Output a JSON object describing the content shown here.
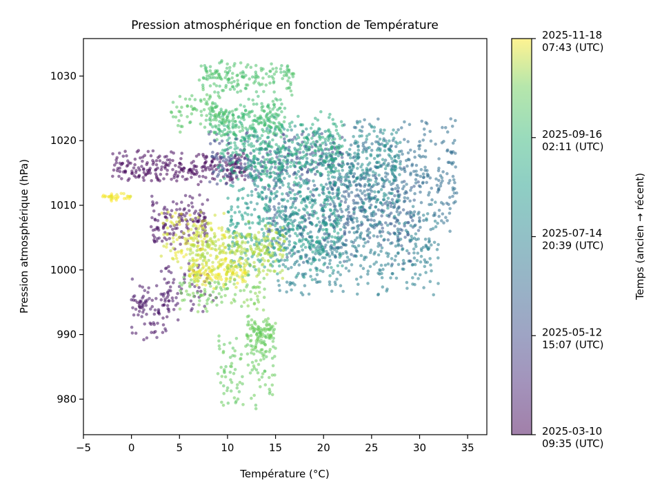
{
  "chart_data": {
    "type": "scatter",
    "title": "Pression atmosphérique en fonction de Température",
    "xlabel": "Température (°C)",
    "ylabel": "Pression atmosphérique (hPa)",
    "xlim": [
      -5,
      37
    ],
    "ylim": [
      974.5,
      1035.8
    ],
    "xticks": [
      -5,
      0,
      5,
      10,
      15,
      20,
      25,
      30,
      35
    ],
    "xtick_labels": [
      "−5",
      "0",
      "5",
      "10",
      "15",
      "20",
      "25",
      "30",
      "35"
    ],
    "yticks": [
      980,
      990,
      1000,
      1010,
      1020,
      1030
    ],
    "ytick_labels": [
      "980",
      "990",
      "1000",
      "1010",
      "1020",
      "1030"
    ],
    "grid": false,
    "colormap": "viridis",
    "point_alpha": 0.55,
    "colorbar": {
      "label": "Temps (ancien → récent)",
      "range": [
        "2025-03-10 09:35 (UTC)",
        "2025-11-18 07:43 (UTC)"
      ],
      "ticks": [
        {
          "line1": "2025-11-18",
          "line2": "07:43 (UTC)",
          "t": 1.0
        },
        {
          "line1": "2025-09-16",
          "line2": "02:11 (UTC)",
          "t": 0.75
        },
        {
          "line1": "2025-07-14",
          "line2": "20:39 (UTC)",
          "t": 0.5
        },
        {
          "line1": "2025-05-12",
          "line2": "15:07 (UTC)",
          "t": 0.25
        },
        {
          "line1": "2025-03-10",
          "line2": "09:35 (UTC)",
          "t": 0.0
        }
      ]
    },
    "series_clusters": [
      {
        "t": 0.02,
        "x": [
          -2,
          12
        ],
        "y": [
          1013,
          1019
        ],
        "n": 260
      },
      {
        "t": 0.04,
        "x": [
          2,
          8
        ],
        "y": [
          1003,
          1012
        ],
        "n": 140
      },
      {
        "t": 0.05,
        "x": [
          0,
          4
        ],
        "y": [
          989,
          999
        ],
        "n": 90
      },
      {
        "t": 0.06,
        "x": [
          3,
          9
        ],
        "y": [
          992,
          1002
        ],
        "n": 60
      },
      {
        "t": 0.25,
        "x": [
          8,
          22
        ],
        "y": [
          1012,
          1022
        ],
        "n": 220
      },
      {
        "t": 0.32,
        "x": [
          14,
          30
        ],
        "y": [
          1000,
          1016
        ],
        "n": 320
      },
      {
        "t": 0.4,
        "x": [
          20,
          34
        ],
        "y": [
          1005,
          1024
        ],
        "n": 380
      },
      {
        "t": 0.48,
        "x": [
          15,
          32
        ],
        "y": [
          995,
          1012
        ],
        "n": 400
      },
      {
        "t": 0.55,
        "x": [
          12,
          28
        ],
        "y": [
          1008,
          1024
        ],
        "n": 420
      },
      {
        "t": 0.62,
        "x": [
          10,
          22
        ],
        "y": [
          998,
          1015
        ],
        "n": 360
      },
      {
        "t": 0.7,
        "x": [
          9,
          22
        ],
        "y": [
          1013,
          1025
        ],
        "n": 320
      },
      {
        "t": 0.78,
        "x": [
          8,
          16
        ],
        "y": [
          1020,
          1027
        ],
        "n": 200
      },
      {
        "t": 0.8,
        "x": [
          7,
          17
        ],
        "y": [
          1027,
          1033
        ],
        "n": 160
      },
      {
        "t": 0.82,
        "x": [
          4,
          10
        ],
        "y": [
          1021,
          1028
        ],
        "n": 70
      },
      {
        "t": 0.85,
        "x": [
          9,
          15
        ],
        "y": [
          977,
          992
        ],
        "n": 110
      },
      {
        "t": 0.86,
        "x": [
          12,
          15
        ],
        "y": [
          987,
          993
        ],
        "n": 100
      },
      {
        "t": 0.88,
        "x": [
          5,
          14
        ],
        "y": [
          993,
          1000
        ],
        "n": 100
      },
      {
        "t": 0.93,
        "x": [
          6,
          16
        ],
        "y": [
          998,
          1008
        ],
        "n": 260
      },
      {
        "t": 0.97,
        "x": [
          3,
          10
        ],
        "y": [
          1000,
          1010
        ],
        "n": 120
      },
      {
        "t": 0.99,
        "x": [
          -3,
          0
        ],
        "y": [
          1010.5,
          1012
        ],
        "n": 30
      },
      {
        "t": 0.98,
        "x": [
          6,
          12
        ],
        "y": [
          997,
          1002
        ],
        "n": 120
      }
    ]
  }
}
